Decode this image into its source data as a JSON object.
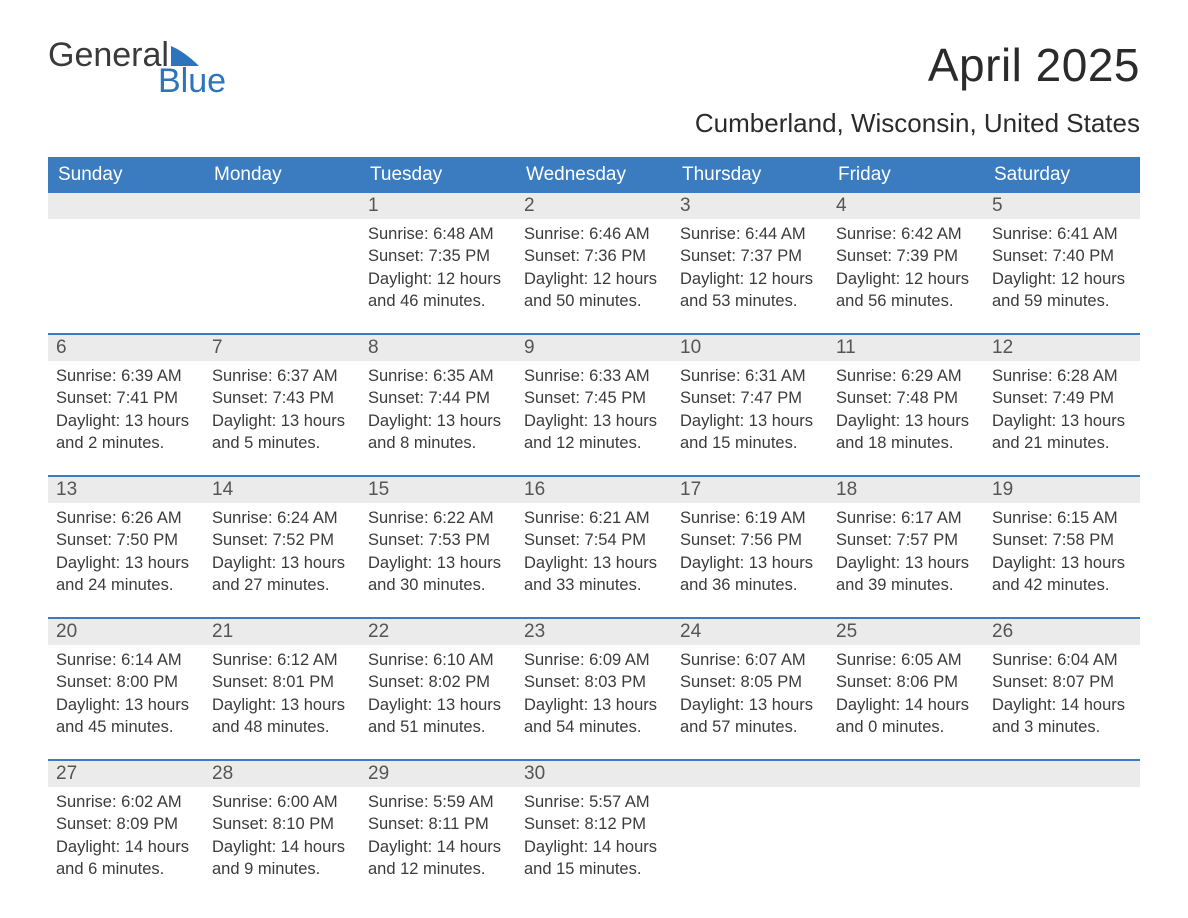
{
  "logo": {
    "word1": "General",
    "word2": "Blue"
  },
  "title": "April 2025",
  "location": "Cumberland, Wisconsin, United States",
  "colors": {
    "header_bg": "#3a7cbf",
    "header_text": "#ffffff",
    "daynum_bg": "#ebebeb",
    "week_border": "#3a7cbf",
    "body_text": "#3b3b3b",
    "logo_blue": "#2d74bd"
  },
  "fonts": {
    "title_pt": 46,
    "location_pt": 26,
    "dow_pt": 19,
    "body_pt": 16.5
  },
  "days_of_week": [
    "Sunday",
    "Monday",
    "Tuesday",
    "Wednesday",
    "Thursday",
    "Friday",
    "Saturday"
  ],
  "labels": {
    "sunrise": "Sunrise:",
    "sunset": "Sunset:",
    "daylight": "Daylight:"
  },
  "weeks": [
    [
      {
        "day": "",
        "sunrise": "",
        "sunset": "",
        "daylight1": "",
        "daylight2": ""
      },
      {
        "day": "",
        "sunrise": "",
        "sunset": "",
        "daylight1": "",
        "daylight2": ""
      },
      {
        "day": "1",
        "sunrise": "6:48 AM",
        "sunset": "7:35 PM",
        "daylight1": "12 hours",
        "daylight2": "and 46 minutes."
      },
      {
        "day": "2",
        "sunrise": "6:46 AM",
        "sunset": "7:36 PM",
        "daylight1": "12 hours",
        "daylight2": "and 50 minutes."
      },
      {
        "day": "3",
        "sunrise": "6:44 AM",
        "sunset": "7:37 PM",
        "daylight1": "12 hours",
        "daylight2": "and 53 minutes."
      },
      {
        "day": "4",
        "sunrise": "6:42 AM",
        "sunset": "7:39 PM",
        "daylight1": "12 hours",
        "daylight2": "and 56 minutes."
      },
      {
        "day": "5",
        "sunrise": "6:41 AM",
        "sunset": "7:40 PM",
        "daylight1": "12 hours",
        "daylight2": "and 59 minutes."
      }
    ],
    [
      {
        "day": "6",
        "sunrise": "6:39 AM",
        "sunset": "7:41 PM",
        "daylight1": "13 hours",
        "daylight2": "and 2 minutes."
      },
      {
        "day": "7",
        "sunrise": "6:37 AM",
        "sunset": "7:43 PM",
        "daylight1": "13 hours",
        "daylight2": "and 5 minutes."
      },
      {
        "day": "8",
        "sunrise": "6:35 AM",
        "sunset": "7:44 PM",
        "daylight1": "13 hours",
        "daylight2": "and 8 minutes."
      },
      {
        "day": "9",
        "sunrise": "6:33 AM",
        "sunset": "7:45 PM",
        "daylight1": "13 hours",
        "daylight2": "and 12 minutes."
      },
      {
        "day": "10",
        "sunrise": "6:31 AM",
        "sunset": "7:47 PM",
        "daylight1": "13 hours",
        "daylight2": "and 15 minutes."
      },
      {
        "day": "11",
        "sunrise": "6:29 AM",
        "sunset": "7:48 PM",
        "daylight1": "13 hours",
        "daylight2": "and 18 minutes."
      },
      {
        "day": "12",
        "sunrise": "6:28 AM",
        "sunset": "7:49 PM",
        "daylight1": "13 hours",
        "daylight2": "and 21 minutes."
      }
    ],
    [
      {
        "day": "13",
        "sunrise": "6:26 AM",
        "sunset": "7:50 PM",
        "daylight1": "13 hours",
        "daylight2": "and 24 minutes."
      },
      {
        "day": "14",
        "sunrise": "6:24 AM",
        "sunset": "7:52 PM",
        "daylight1": "13 hours",
        "daylight2": "and 27 minutes."
      },
      {
        "day": "15",
        "sunrise": "6:22 AM",
        "sunset": "7:53 PM",
        "daylight1": "13 hours",
        "daylight2": "and 30 minutes."
      },
      {
        "day": "16",
        "sunrise": "6:21 AM",
        "sunset": "7:54 PM",
        "daylight1": "13 hours",
        "daylight2": "and 33 minutes."
      },
      {
        "day": "17",
        "sunrise": "6:19 AM",
        "sunset": "7:56 PM",
        "daylight1": "13 hours",
        "daylight2": "and 36 minutes."
      },
      {
        "day": "18",
        "sunrise": "6:17 AM",
        "sunset": "7:57 PM",
        "daylight1": "13 hours",
        "daylight2": "and 39 minutes."
      },
      {
        "day": "19",
        "sunrise": "6:15 AM",
        "sunset": "7:58 PM",
        "daylight1": "13 hours",
        "daylight2": "and 42 minutes."
      }
    ],
    [
      {
        "day": "20",
        "sunrise": "6:14 AM",
        "sunset": "8:00 PM",
        "daylight1": "13 hours",
        "daylight2": "and 45 minutes."
      },
      {
        "day": "21",
        "sunrise": "6:12 AM",
        "sunset": "8:01 PM",
        "daylight1": "13 hours",
        "daylight2": "and 48 minutes."
      },
      {
        "day": "22",
        "sunrise": "6:10 AM",
        "sunset": "8:02 PM",
        "daylight1": "13 hours",
        "daylight2": "and 51 minutes."
      },
      {
        "day": "23",
        "sunrise": "6:09 AM",
        "sunset": "8:03 PM",
        "daylight1": "13 hours",
        "daylight2": "and 54 minutes."
      },
      {
        "day": "24",
        "sunrise": "6:07 AM",
        "sunset": "8:05 PM",
        "daylight1": "13 hours",
        "daylight2": "and 57 minutes."
      },
      {
        "day": "25",
        "sunrise": "6:05 AM",
        "sunset": "8:06 PM",
        "daylight1": "14 hours",
        "daylight2": "and 0 minutes."
      },
      {
        "day": "26",
        "sunrise": "6:04 AM",
        "sunset": "8:07 PM",
        "daylight1": "14 hours",
        "daylight2": "and 3 minutes."
      }
    ],
    [
      {
        "day": "27",
        "sunrise": "6:02 AM",
        "sunset": "8:09 PM",
        "daylight1": "14 hours",
        "daylight2": "and 6 minutes."
      },
      {
        "day": "28",
        "sunrise": "6:00 AM",
        "sunset": "8:10 PM",
        "daylight1": "14 hours",
        "daylight2": "and 9 minutes."
      },
      {
        "day": "29",
        "sunrise": "5:59 AM",
        "sunset": "8:11 PM",
        "daylight1": "14 hours",
        "daylight2": "and 12 minutes."
      },
      {
        "day": "30",
        "sunrise": "5:57 AM",
        "sunset": "8:12 PM",
        "daylight1": "14 hours",
        "daylight2": "and 15 minutes."
      },
      {
        "day": "",
        "sunrise": "",
        "sunset": "",
        "daylight1": "",
        "daylight2": ""
      },
      {
        "day": "",
        "sunrise": "",
        "sunset": "",
        "daylight1": "",
        "daylight2": ""
      },
      {
        "day": "",
        "sunrise": "",
        "sunset": "",
        "daylight1": "",
        "daylight2": ""
      }
    ]
  ]
}
